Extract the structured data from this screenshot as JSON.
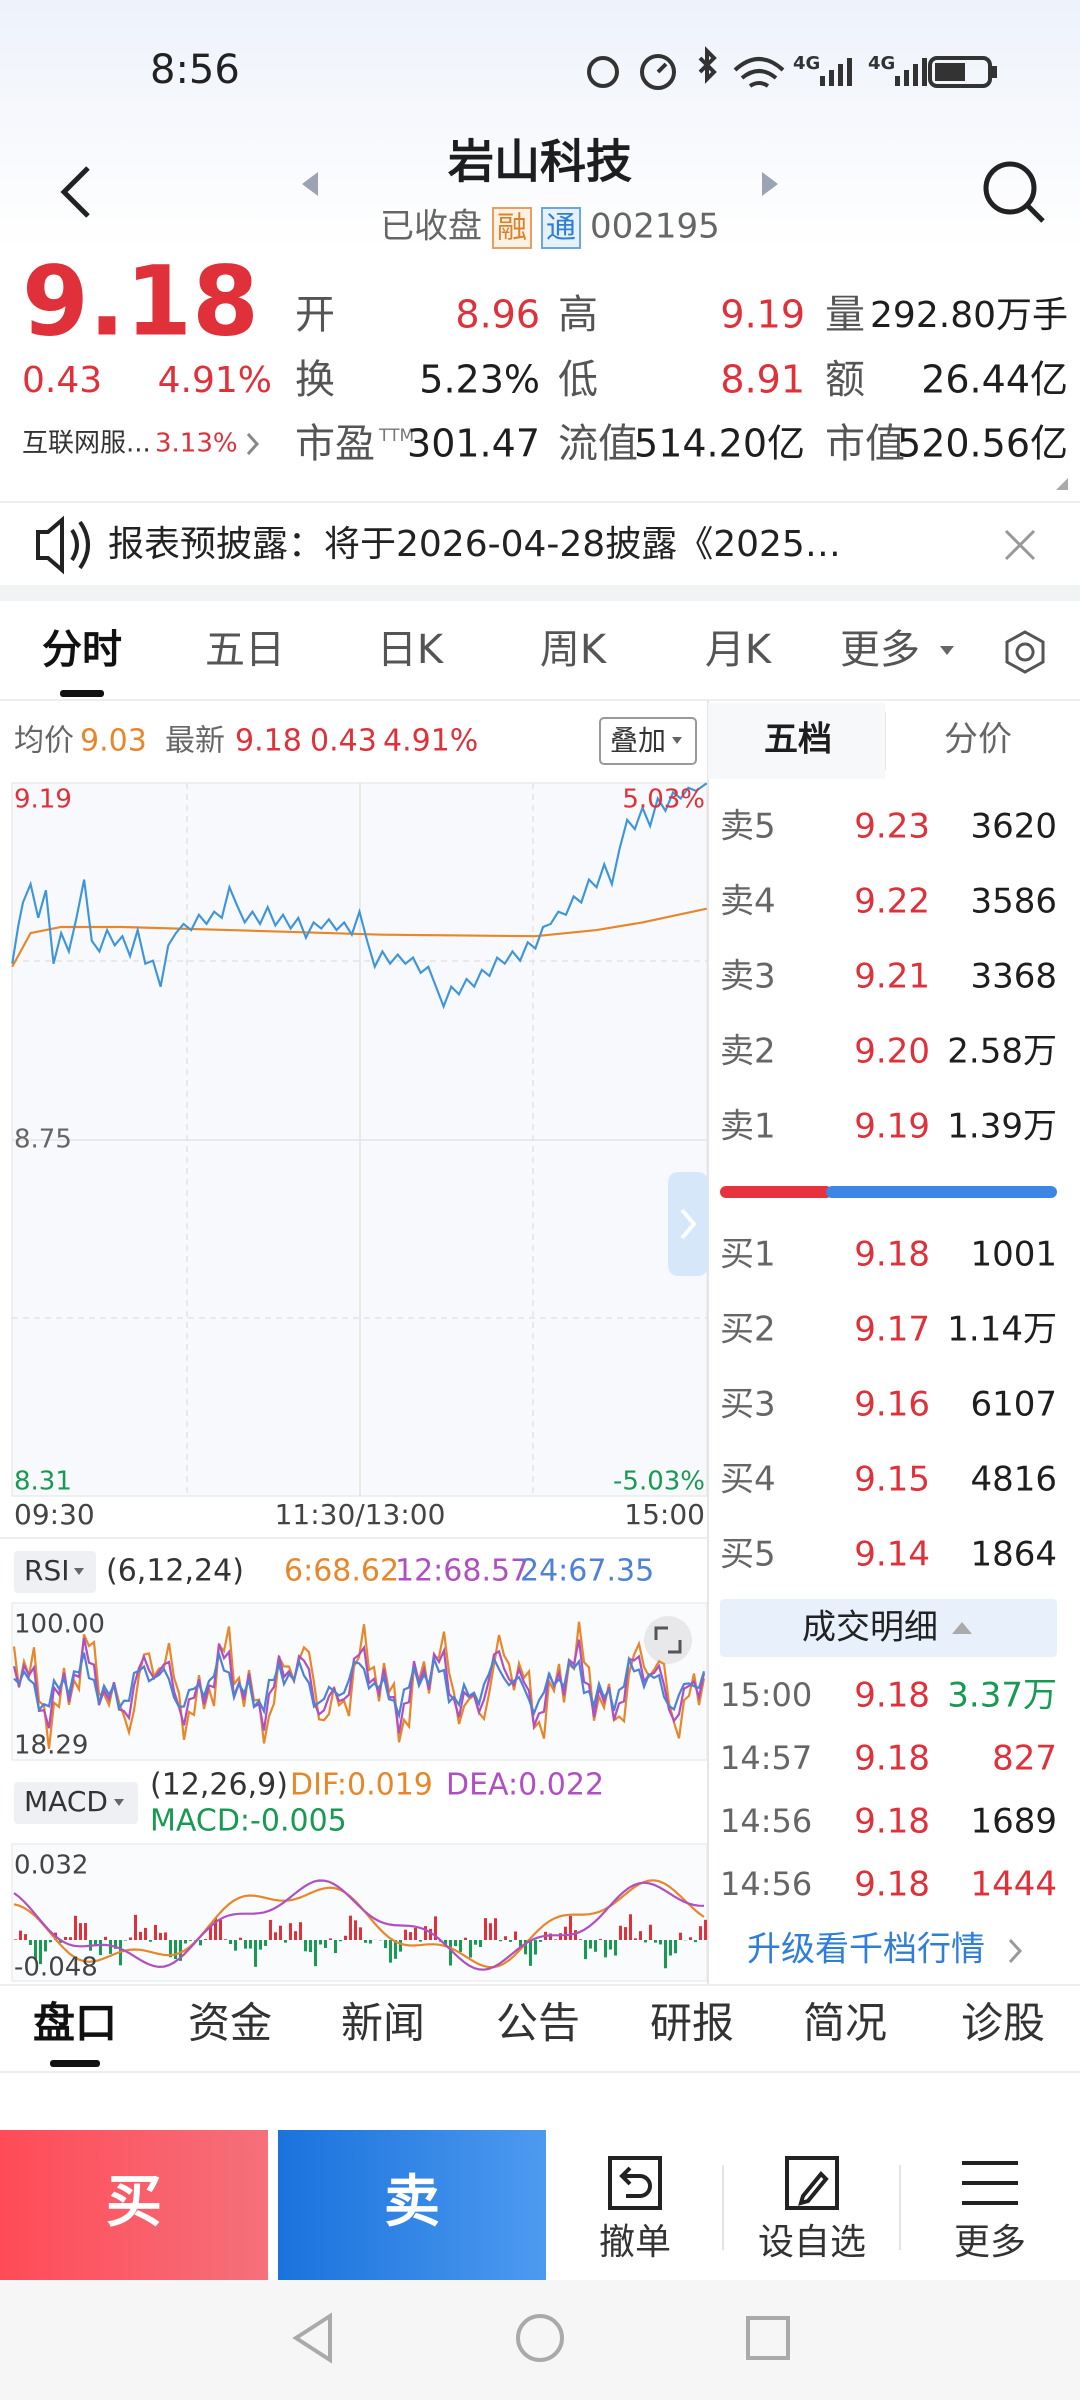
{
  "status_bar": {
    "time": "8:56",
    "network": [
      "4G",
      "4G"
    ]
  },
  "header": {
    "title": "岩山科技",
    "status": "已收盘",
    "tags": [
      "融",
      "通"
    ],
    "code": "002195"
  },
  "quote": {
    "price": "9.18",
    "change": "0.43",
    "change_pct": "4.91%",
    "sector": "互联网服...",
    "sector_pct": "3.13%",
    "fields": [
      {
        "label": "开",
        "value": "8.96"
      },
      {
        "label": "高",
        "value": "9.19"
      },
      {
        "label": "量",
        "value": "292.80万手"
      },
      {
        "label": "换",
        "value": "5.23%"
      },
      {
        "label": "低",
        "value": "8.91"
      },
      {
        "label": "额",
        "value": "26.44亿"
      },
      {
        "label": "市盈",
        "sup": "TTM",
        "value": "301.47"
      },
      {
        "label": "流值",
        "value": "514.20亿"
      },
      {
        "label": "市值",
        "value": "520.56亿"
      }
    ]
  },
  "notice": {
    "text": "报表预披露：将于2026-04-28披露《2025…"
  },
  "chart_tabs": [
    "分时",
    "五日",
    "日K",
    "周K",
    "月K",
    "更多"
  ],
  "intraday": {
    "avg_label": "均价",
    "avg": "9.03",
    "latest_label": "最新",
    "latest": "9.18",
    "change": "0.43",
    "change_pct": "4.91%",
    "overlay": "叠加",
    "price_labels": [
      "9.19",
      "8.75",
      "8.31"
    ],
    "pct_labels": [
      "5.03%",
      "-5.03%"
    ],
    "time_labels": [
      "09:30",
      "11:30/13:00",
      "15:00"
    ]
  },
  "rsi": {
    "name": "RSI",
    "params": "(6,12,24)",
    "values": [
      "6:68.62",
      "12:68.57",
      "24:67.35"
    ],
    "axis": [
      "100.00",
      "18.29"
    ]
  },
  "macd": {
    "name": "MACD",
    "params": "(12,26,9)",
    "dif": "DIF:0.019",
    "dea": "DEA:0.022",
    "macd": "MACD:-0.005",
    "axis": [
      "0.032",
      "-0.048"
    ]
  },
  "order_book": {
    "tabs": [
      "五档",
      "分价"
    ],
    "asks": [
      {
        "label": "卖5",
        "price": "9.23",
        "volume": "3620"
      },
      {
        "label": "卖4",
        "price": "9.22",
        "volume": "3586"
      },
      {
        "label": "卖3",
        "price": "9.21",
        "volume": "3368"
      },
      {
        "label": "卖2",
        "price": "9.20",
        "volume": "2.58万"
      },
      {
        "label": "卖1",
        "price": "9.19",
        "volume": "1.39万"
      }
    ],
    "bids": [
      {
        "label": "买1",
        "price": "9.18",
        "volume": "1001"
      },
      {
        "label": "买2",
        "price": "9.17",
        "volume": "1.14万"
      },
      {
        "label": "买3",
        "price": "9.16",
        "volume": "6107"
      },
      {
        "label": "买4",
        "price": "9.15",
        "volume": "4816"
      },
      {
        "label": "买5",
        "price": "9.14",
        "volume": "1864"
      }
    ],
    "trades_title": "成交明细",
    "trades": [
      {
        "time": "15:00",
        "price": "9.18",
        "volume": "3.37万"
      },
      {
        "time": "14:57",
        "price": "9.18",
        "volume": "827"
      },
      {
        "time": "14:56",
        "price": "9.18",
        "volume": "1689"
      },
      {
        "time": "14:56",
        "price": "9.18",
        "volume": "1444"
      }
    ],
    "upgrade": "升级看千档行情"
  },
  "bottom_tabs": [
    "盘口",
    "资金",
    "新闻",
    "公告",
    "研报",
    "简况",
    "诊股"
  ],
  "actions": {
    "buy": "买",
    "sell": "卖",
    "tools": [
      "撤单",
      "设自选",
      "更多"
    ]
  }
}
